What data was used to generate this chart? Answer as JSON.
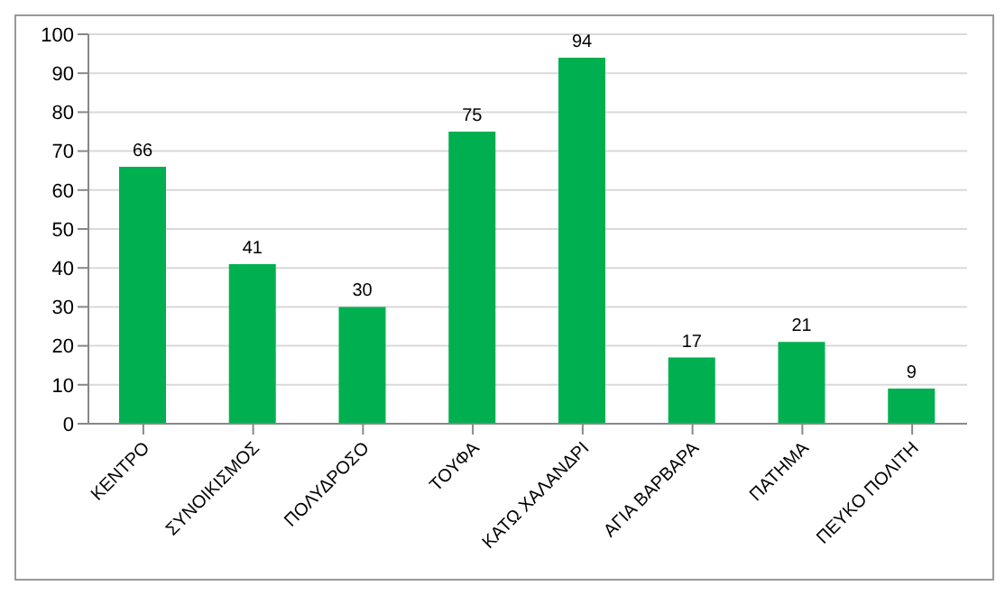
{
  "chart_data": {
    "type": "bar",
    "categories": [
      "ΚΕΝΤΡΟ",
      "ΣΥΝΟΙΚΙΣΜΟΣ",
      "ΠΟΛΥΔΡΟΣΟ",
      "ΤΟΥΦΑ",
      "ΚΑΤΩ ΧΑΛΑΝΔΡΙ",
      "ΑΓΙΑ ΒΑΡΒΑΡΑ",
      "ΠΑΤΗΜΑ",
      "ΠΕΥΚΟ ΠΟΛΙΤΗ"
    ],
    "values": [
      66,
      41,
      30,
      75,
      94,
      17,
      21,
      9
    ],
    "color": "#00b050",
    "ylim": [
      0,
      100
    ],
    "yticks": [
      0,
      10,
      20,
      30,
      40,
      50,
      60,
      70,
      80,
      90,
      100
    ],
    "grid": "y",
    "data_labels": true
  }
}
